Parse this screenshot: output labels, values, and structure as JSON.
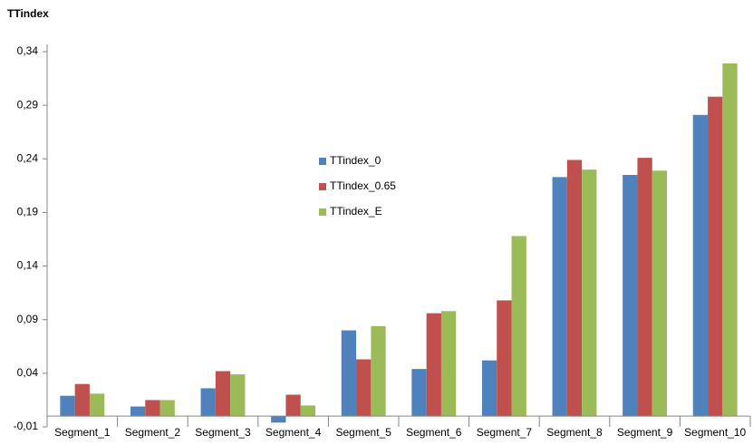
{
  "chart_data": {
    "type": "bar",
    "title": "TTindex",
    "categories": [
      "Segment_1",
      "Segment_2",
      "Segment_3",
      "Segment_4",
      "Segment_5",
      "Segment_6",
      "Segment_7",
      "Segment_8",
      "Segment_9",
      "Segment_10"
    ],
    "series": [
      {
        "name": "TTindex_0",
        "color": "#4f81bd",
        "values": [
          0.019,
          0.009,
          0.026,
          -0.006,
          0.08,
          0.044,
          0.052,
          0.223,
          0.225,
          0.281
        ]
      },
      {
        "name": "TTindex_0.65",
        "color": "#c0504d",
        "values": [
          0.03,
          0.015,
          0.042,
          0.02,
          0.053,
          0.096,
          0.108,
          0.239,
          0.241,
          0.298
        ]
      },
      {
        "name": "TTindex_E",
        "color": "#9bbb59",
        "values": [
          0.021,
          0.015,
          0.039,
          0.01,
          0.084,
          0.098,
          0.168,
          0.23,
          0.229,
          0.329
        ]
      }
    ],
    "ylim": [
      -0.01,
      0.34
    ],
    "yticks": [
      {
        "value": -0.01,
        "label": "-0,01"
      },
      {
        "value": 0.04,
        "label": "0,04"
      },
      {
        "value": 0.09,
        "label": "0,09"
      },
      {
        "value": 0.14,
        "label": "0,14"
      },
      {
        "value": 0.19,
        "label": "0,19"
      },
      {
        "value": 0.24,
        "label": "0,24"
      },
      {
        "value": 0.29,
        "label": "0,29"
      },
      {
        "value": 0.34,
        "label": "0,34"
      }
    ],
    "grid": false,
    "legend": "center"
  }
}
